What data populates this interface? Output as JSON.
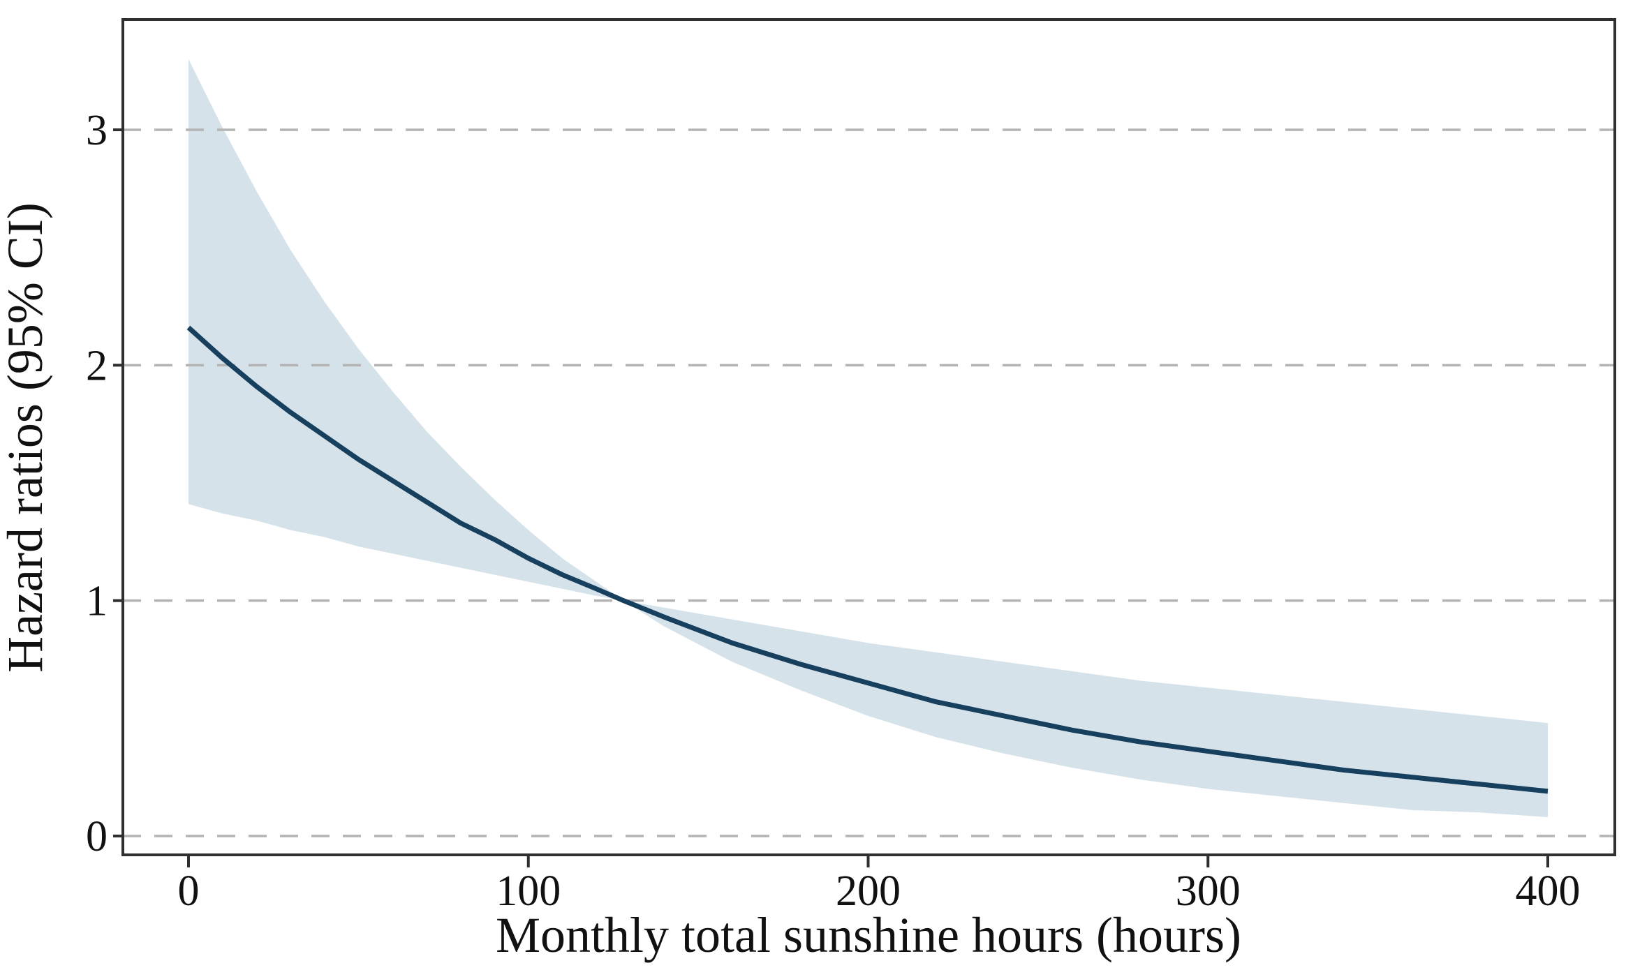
{
  "colors": {
    "background": "#ffffff",
    "line": "#173f5e",
    "band": "#d6e2ea",
    "grid": "#b3b3b3",
    "frame": "#2f2f2f",
    "text": "#111111"
  },
  "chart_data": {
    "type": "line",
    "title": "",
    "xlabel": "Monthly total sunshine hours (hours)",
    "ylabel": "Hazard ratios (95% CI)",
    "x_ticks": [
      0,
      100,
      200,
      300,
      400
    ],
    "y_ticks": [
      0,
      1,
      2,
      3
    ],
    "xlim": [
      -19,
      420
    ],
    "ylim": [
      -0.08,
      3.47
    ],
    "grid": "horizontal-dashed",
    "legend": "none",
    "x": [
      0,
      10,
      20,
      30,
      40,
      50,
      60,
      70,
      80,
      90,
      100,
      110,
      120,
      128,
      140,
      160,
      180,
      200,
      220,
      240,
      260,
      280,
      300,
      320,
      340,
      360,
      380,
      400
    ],
    "series": [
      {
        "name": "Hazard ratio",
        "values": [
          2.16,
          2.03,
          1.91,
          1.8,
          1.7,
          1.6,
          1.51,
          1.42,
          1.33,
          1.26,
          1.18,
          1.11,
          1.05,
          1.0,
          0.93,
          0.82,
          0.73,
          0.65,
          0.57,
          0.51,
          0.45,
          0.4,
          0.36,
          0.32,
          0.28,
          0.25,
          0.22,
          0.19
        ]
      },
      {
        "name": "95% CI upper",
        "values": [
          3.3,
          3.01,
          2.74,
          2.49,
          2.27,
          2.07,
          1.89,
          1.72,
          1.57,
          1.43,
          1.3,
          1.18,
          1.08,
          1.0,
          0.97,
          0.92,
          0.87,
          0.82,
          0.78,
          0.74,
          0.7,
          0.66,
          0.63,
          0.6,
          0.57,
          0.54,
          0.51,
          0.48
        ]
      },
      {
        "name": "95% CI lower",
        "values": [
          1.41,
          1.37,
          1.34,
          1.3,
          1.27,
          1.23,
          1.2,
          1.17,
          1.14,
          1.11,
          1.08,
          1.05,
          1.02,
          1.0,
          0.89,
          0.74,
          0.62,
          0.51,
          0.42,
          0.35,
          0.29,
          0.24,
          0.2,
          0.17,
          0.14,
          0.11,
          0.1,
          0.08
        ]
      }
    ],
    "reference": {
      "x": 128,
      "hazard_ratio": 1.0
    }
  }
}
